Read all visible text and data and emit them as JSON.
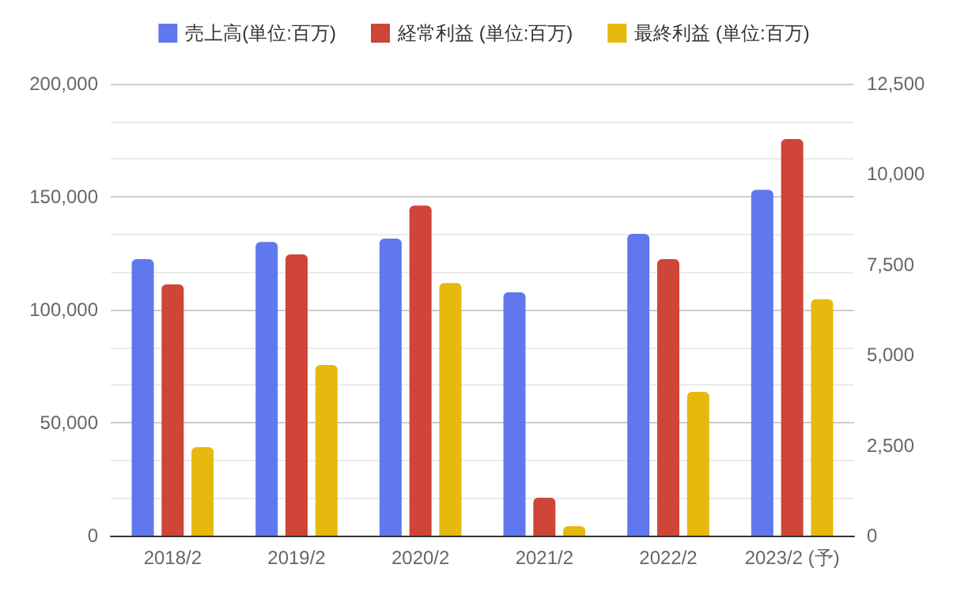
{
  "chart_data": {
    "type": "bar",
    "categories": [
      "2018/2",
      "2019/2",
      "2020/2",
      "2021/2",
      "2022/2",
      "2023/2 (予)"
    ],
    "series": [
      {
        "name": "売上高(単位:百万)",
        "color": "#6078ee",
        "values": [
          122400,
          130000,
          131500,
          107700,
          133600,
          153100
        ]
      },
      {
        "name": "経常利益 (単位:百万)",
        "color": "#cf4538",
        "axis": "y2",
        "values": [
          6950,
          7780,
          9130,
          1050,
          7650,
          10970
        ]
      },
      {
        "name": "最終利益 (単位:百万)",
        "color": "#e6b90f",
        "axis": "y2",
        "values": [
          2450,
          4720,
          6990,
          260,
          3980,
          6540
        ]
      }
    ],
    "ylim": [
      0,
      200000
    ],
    "yticks": [
      {
        "value": 0,
        "label": "0"
      },
      {
        "value": 50000,
        "label": "50,000"
      },
      {
        "value": 100000,
        "label": "100,000"
      },
      {
        "value": 150000,
        "label": "150,000"
      },
      {
        "value": 200000,
        "label": "200,000"
      }
    ],
    "y2lim": [
      0,
      12500
    ],
    "y2ticks": [
      {
        "value": 0,
        "label": "0"
      },
      {
        "value": 2500,
        "label": "2,500"
      },
      {
        "value": 5000,
        "label": "5,000"
      },
      {
        "value": 7500,
        "label": "7,500"
      },
      {
        "value": 10000,
        "label": "10,000"
      },
      {
        "value": 12500,
        "label": "12,500"
      }
    ],
    "grid": "y",
    "legend": "top"
  }
}
